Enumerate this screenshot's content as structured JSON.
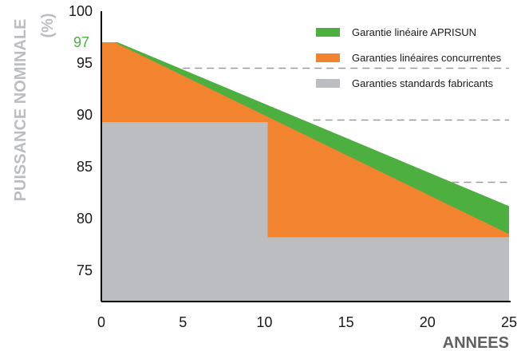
{
  "chart_data": {
    "type": "area",
    "ylabel_line1": "PUISSANCE NOMINALE",
    "ylabel_line2": "(%)",
    "xlabel": "ANNEES",
    "xlim": [
      0,
      25
    ],
    "ylim": [
      72,
      100
    ],
    "x_ticks": [
      "0",
      "5",
      "10",
      "15",
      "20",
      "25"
    ],
    "y_ticks": [
      "100",
      "95",
      "90",
      "85",
      "80",
      "75"
    ],
    "highlight_tick": {
      "label": "97",
      "value": 97,
      "color": "#4caf3f"
    },
    "series": [
      {
        "name": "Garantie linéaire APRISUN",
        "color": "#4caf3f",
        "x": [
          0,
          1,
          25
        ],
        "y": [
          97,
          97,
          81.2
        ]
      },
      {
        "name": "Garanties linéaires concurrentes",
        "color": "#f28430",
        "x": [
          0,
          0.8,
          25
        ],
        "y": [
          97,
          97,
          78.5
        ]
      },
      {
        "name": "Garanties standards fabricants",
        "color": "#bcbdc0",
        "x": [
          0,
          10.2,
          10.2,
          25
        ],
        "y": [
          89.3,
          89.3,
          78.2,
          78.2
        ]
      }
    ],
    "reference_lines": [
      {
        "y": 94.5,
        "x_from": 5,
        "x_to": 25
      },
      {
        "y": 89.5,
        "x_from": 13,
        "x_to": 25
      },
      {
        "y": 83.5,
        "x_from": 21.5,
        "x_to": 25
      }
    ],
    "axis_title_color": "#bcbdc0",
    "xlabel_color": "#5f6060",
    "dash_color": "#9a9a9a",
    "legend_position": "top-right",
    "grid": false
  }
}
